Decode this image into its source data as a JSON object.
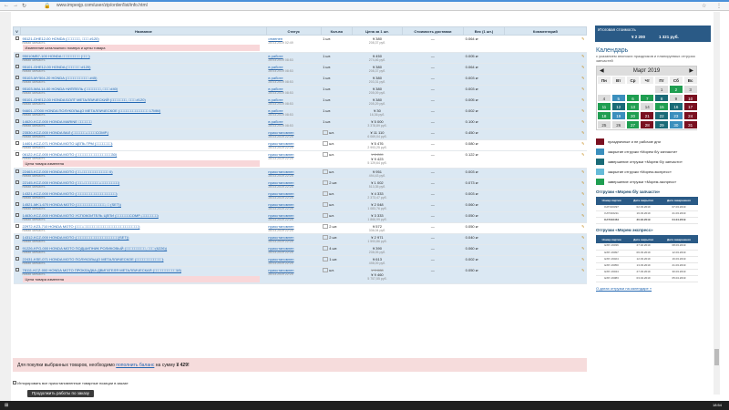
{
  "browser": {
    "url": "www.impexjp.com/user/zip/order/list/info.html"
  },
  "table": {
    "headers": [
      "Название",
      "Статус",
      "Кол-во",
      "Цена за 1 шт.",
      "Стоимость доставки",
      "Вес (1 шт.)",
      "Комментарий"
    ],
    "rows": [
      {
        "name": "95121-DHE12-00 HONDA (□□□□□□, □□□ #120)",
        "sub": "новая запчасть",
        "status": "отменен",
        "date": "28.03.2019 02:49",
        "qty": "1 шт.",
        "price": "¥ 380",
        "rub": "208,37 руб.",
        "del": "—",
        "weight": "0.064 кг",
        "note": "Изменение каталожного номера и цены товара"
      },
      {
        "name": "95010MB7-100 HONDA □□□□□□□□ (□□□)",
        "sub": "новая запчасть",
        "status": "в работе",
        "date": "28.03.2019 08:53",
        "qty": "1 шт.",
        "price": "¥ 450",
        "rub": "274,46 руб.",
        "del": "—",
        "weight": "0.005 кг"
      },
      {
        "name": "95101-GHE12-00 HONDA (□□□□□□ #120)",
        "sub": "новая запчасть",
        "status": "в работе",
        "date": "28.03.2019 08:53",
        "qty": "1 шт.",
        "price": "¥ 380",
        "rub": "208,37 руб.",
        "del": "—",
        "weight": "0.064 кг"
      },
      {
        "name": "95103-MY504-20 HONDA (□□□□□□□□□□ #45)",
        "sub": "новая запчасть",
        "status": "в работе",
        "date": "28.03.2019 08:53",
        "qty": "1 шт.",
        "price": "¥ 380",
        "rub": "203,31 руб.",
        "del": "—",
        "weight": "0.003 кг"
      },
      {
        "name": "95103-MAL14-00 HONDA НИППЕЛЬ (□□□□□□□, □□□ #40)",
        "sub": "новая запчасть",
        "status": "в работе",
        "date": "28.03.2019 08:53",
        "qty": "1 шт.",
        "price": "¥ 380",
        "rub": "205,09 руб.",
        "del": "—",
        "weight": "0.003 кг"
      },
      {
        "name": "95101-GHE12-00 HONDA БОЛТ МЕТАЛЛИЧЕСКИЙ (□□□□□□□, □□□ #120)",
        "sub": "новая запчасть",
        "status": "в работе",
        "date": "28.03.2019 08:53",
        "qty": "1 шт.",
        "price": "¥ 380",
        "rub": "205,29 руб.",
        "del": "—",
        "weight": "0.005 кг"
      },
      {
        "name": "94601-17000 HONDA ПОЛУКОЛЬЦО МЕТАЛЛИЧЕСКОЕ (□□□□□□□□□□□□□ 17MM)",
        "sub": "новая запчасть",
        "status": "в работе",
        "date": "28.03.2019 08:53",
        "qty": "1 шт.",
        "price": "¥ 30",
        "rub": "16,36 руб.",
        "del": "—",
        "weight": "0.002 кг"
      },
      {
        "name": "14620-KCZ-000 HONDA MARINE □□□□□□",
        "sub": "новая запчасть",
        "status": "в работе",
        "date": "28.03.2019 08:53",
        "qty": "1 шт.",
        "price": "¥ 5 000",
        "rub": "3 378,89 руб.",
        "del": "—",
        "weight": "0.100 кг"
      },
      {
        "name": "23530-KCZ-000 HONDA ВАЛ (□□□□□□-□□□□COMP.)",
        "sub": "новая запчасть",
        "status": "приостановлен",
        "date": "28.03.2019 22:25",
        "qty": "шт.",
        "price": "¥ 11 110",
        "rub": "6 069,04 руб.",
        "del": "—",
        "weight": "0.450 кг"
      },
      {
        "name": "14401-KCZ-071 HONDA MOTO ЦЕПЬ ГРМ (□□□□□□□)",
        "sub": "новая запчасть",
        "status": "приостановлен",
        "date": "28.03.2019 22:25",
        "qty": "шт.",
        "price": "¥ 5 476",
        "rub": "2 993,25 руб.",
        "del": "—",
        "weight": "0.080 кг"
      },
      {
        "name": "06122-KCZ-000 HONDA MOTO (□□□□□□□□□□□□□□□□30)",
        "sub": "новая запчасть",
        "status": "приостановлен",
        "date": "28.03.2019 22:25",
        "qty": "шт.",
        "price": "¥ 8 289",
        "rub": "",
        "price2": "¥ 9 423",
        "rub2": "5 129,64 руб.",
        "del": "—",
        "weight": "0.122 кг",
        "note": "Цена товара изменена"
      },
      {
        "name": "22463-KCZ-000 HONDA MOTO (□□-□□□□□□□□□□□□ 0)",
        "sub": "новая запчасть",
        "status": "приостановлен",
        "date": "28.03.2019 22:25",
        "qty": "шт.",
        "price": "¥ 951",
        "rub": "494,43 руб.",
        "del": "—",
        "weight": "0.003 кг"
      },
      {
        "name": "22145-KCZ-000 HONDA MOTO (□□□-□□□□□□□-□□□□□□□□)",
        "sub": "новая запчасть",
        "status": "приостановлен",
        "date": "28.03.2019 22:25",
        "qty": "2 шт.",
        "price": "¥ 1 002",
        "rub": "513,35 руб.",
        "del": "—",
        "weight": "0.073 кг"
      },
      {
        "name": "14321-KCZ-000 HONDA MOTO (□□□□□□□□□□□□□□□□□□)",
        "sub": "новая запчасть",
        "status": "приостановлен",
        "date": "28.03.2019 22:25",
        "qty": "шт.",
        "price": "¥ 4 333",
        "rub": "2 373,47 руб.",
        "del": "—",
        "weight": "0.003 кг"
      },
      {
        "name": "14521-MK1-670 HONDA MOTO (□□□□□□□□□□□□□, □ (SET))",
        "sub": "новая запчасть",
        "status": "приостановлен",
        "date": "28.03.2019 22:25",
        "qty": "шт.",
        "price": "¥ 2 048",
        "rub": "1 083,76 руб.",
        "del": "—",
        "weight": "0.060 кг"
      },
      {
        "name": "14630-KCZ-000 HONDA MOTO УСПОКОИТЕЛЬ ЦЕПИ (□□□□□□COMP.,□□□□□□□)",
        "sub": "новая запчасть",
        "status": "приостановлен",
        "date": "28.03.2019 22:25",
        "qty": "шт.",
        "price": "¥ 3 333",
        "rub": "1 866,99 руб.",
        "del": "—",
        "weight": "0.050 кг"
      },
      {
        "name": "22972-KZ3-710 HONDA MOTO (□□□-□□□□□□□□□□□□□□□□□□□□□□□□□)",
        "sub": "новая запчасть",
        "status": "приостановлен",
        "date": "28.03.2019 22:25",
        "qty": "2 шт.",
        "price": "¥ 572",
        "rub": "336,04 руб.",
        "del": "—",
        "weight": "0.050 кг"
      },
      {
        "name": "14312-KCZ-000 HONDA MOTO (□□□□□□□□□□□□□□□□□□□(SET))",
        "sub": "новая запчасть",
        "status": "приостановлен",
        "date": "28.03.2019 22:25",
        "qty": "2 шт.",
        "price": "¥ 2 971",
        "rub": "1 593,86 руб.",
        "del": "—",
        "weight": "0.040 кг"
      },
      {
        "name": "91226-KFG-000 HONDA MOTO ПОДШИПНИК РОЛИКОВЫЙ (□□□□□□□□□, □□□ (6226))",
        "sub": "новая запчасть",
        "status": "приостановлен",
        "date": "28.03.2019 22:25",
        "qty": "4 шт.",
        "price": "¥ 390",
        "rub": "208,05 руб.",
        "del": "—",
        "weight": "0.060 кг"
      },
      {
        "name": "22431-KSE-071 HONDA MOTO ПОЛУКОЛЬЦО МЕТАЛЛИЧЕСКОЕ (□□□□□□□□□□□□)",
        "sub": "новая запчасть",
        "status": "приостановлен",
        "date": "28.03.2019 22:25",
        "qty": "1 шт.",
        "price": "¥ 613",
        "rub": "498,09 руб.",
        "del": "—",
        "weight": "0.002 кг"
      },
      {
        "name": "78111-KCZ-000 HONDA MOTO ПРОКЛАДКА ДВИГАТЕЛЯ МЕТАЛЛИЧЕСКАЯ (□□□□□□□□□□18)",
        "sub": "новая запчасть",
        "status": "приостановлен",
        "date": "28.03.2019 22:25",
        "qty": "шт.",
        "price": "¥ 9 688",
        "rub": "",
        "price2": "¥ 9 460",
        "rub2": "5 757,55 руб.",
        "del": "—",
        "weight": "0.050 кг",
        "note": "Цена товара изменена"
      }
    ]
  },
  "footer": {
    "text": "Для покупки выбранных товаров, необходимо",
    "link": "пополнить баланс",
    "tail": "на сумму",
    "amount": "¥ 429!"
  },
  "checkbox_label": "Игнорировать все приостановленные товарные позиции в заказе",
  "continue_button": "Продолжить работы по заказу",
  "sidebar": {
    "total_label": "Итоговая стоимость",
    "total_yen": "¥ 2 200",
    "total_rub": "1 321 руб.",
    "cal_title": "Календарь",
    "cal_sub": "с указанием японских праздников и планируемых отгрузок запчастей",
    "month": "Март 2019",
    "weekdays": [
      "Пн",
      "Вт",
      "Ср",
      "Чт",
      "Пт",
      "Сб",
      "Вс"
    ],
    "days": [
      {
        "d": "",
        "c": "#fff"
      },
      {
        "d": "",
        "c": "#fff"
      },
      {
        "d": "",
        "c": "#fff"
      },
      {
        "d": "",
        "c": "#fff"
      },
      {
        "d": "1",
        "c": "#ddd"
      },
      {
        "d": "2",
        "c": "#1f9e51"
      },
      {
        "d": "3",
        "c": "#ddd"
      },
      {
        "d": "4",
        "c": "#ddd"
      },
      {
        "d": "5",
        "c": "#3b8fbd"
      },
      {
        "d": "6",
        "c": "#1f9e51"
      },
      {
        "d": "7",
        "c": "#1f9e51"
      },
      {
        "d": "8",
        "c": "#1a6b77"
      },
      {
        "d": "9",
        "c": "#ddd"
      },
      {
        "d": "10",
        "c": "#7a1020"
      },
      {
        "d": "11",
        "c": "#1f9e51"
      },
      {
        "d": "12",
        "c": "#1a6b77"
      },
      {
        "d": "13",
        "c": "#1f9e51"
      },
      {
        "d": "14",
        "c": "#ddd"
      },
      {
        "d": "15",
        "c": "#1f9e51"
      },
      {
        "d": "16",
        "c": "#1a6b77"
      },
      {
        "d": "17",
        "c": "#7a1020"
      },
      {
        "d": "18",
        "c": "#1f9e51"
      },
      {
        "d": "19",
        "c": "#3b8fbd"
      },
      {
        "d": "20",
        "c": "#1f9e51"
      },
      {
        "d": "21",
        "c": "#7a1020"
      },
      {
        "d": "22",
        "c": "#1a6b77"
      },
      {
        "d": "23",
        "c": "#3b8fbd"
      },
      {
        "d": "24",
        "c": "#7a1020"
      },
      {
        "d": "25",
        "c": "#ddd"
      },
      {
        "d": "26",
        "c": "#ddd"
      },
      {
        "d": "27",
        "c": "#1f9e51"
      },
      {
        "d": "28",
        "c": "#7a1020"
      },
      {
        "d": "29",
        "c": "#1a6b77"
      },
      {
        "d": "30",
        "c": "#3b8fbd"
      },
      {
        "d": "31",
        "c": "#7a1020"
      }
    ],
    "legend": [
      {
        "label": "праздничные и не рабочие дни",
        "c": "#7a1020"
      },
      {
        "label": "закрытие отгрузки «Морем б/у запчасти»",
        "c": "#3b8fbd"
      },
      {
        "label": "завершение отгрузки «Морем б/у запчасти»",
        "c": "#1a6b77"
      },
      {
        "label": "закрытие отгрузки «Морем-экспресс»",
        "c": "#66bbd8"
      },
      {
        "label": "завершение отгрузки «Морем-экспресс»",
        "c": "#1f9e51"
      }
    ],
    "ship1": {
      "title": "Отгрузки «Морем б/у запчасти»",
      "cols": [
        "Номер партии",
        "Дата закрытия",
        "Дата завершения"
      ],
      "rows": [
        [
          "KAT316397",
          "02.03.2019",
          "07.03.2019"
        ],
        [
          "KAT316211",
          "16.03.2019",
          "21.03.2019"
        ],
        [
          "KAT316464",
          "30.03.2019",
          "04.04.2019"
        ]
      ]
    },
    "ship2": {
      "title": "Отгрузки «Морем экспресс»",
      "cols": [
        "Номер партии",
        "Дата закрытия",
        "Дата завершения"
      ],
      "rows": [
        [
          "EXP-16036",
          "27.02.2019",
          "08.03.2019"
        ],
        [
          "EXP-16097",
          "06.03.2019",
          "12.03.2019"
        ],
        [
          "EXP-16024",
          "12.03.2019",
          "16.03.2019"
        ],
        [
          "EXP-16050",
          "13.03.2019",
          "21.03.2019"
        ],
        [
          "EXP-16044",
          "27.03.2019",
          "30.03.2019"
        ],
        [
          "EXP-16083",
          "03.04.2019",
          "05.04.2019"
        ]
      ]
    },
    "link": "О датах отгрузки на календаре »"
  },
  "taskbar": {
    "clock": "18:54"
  }
}
